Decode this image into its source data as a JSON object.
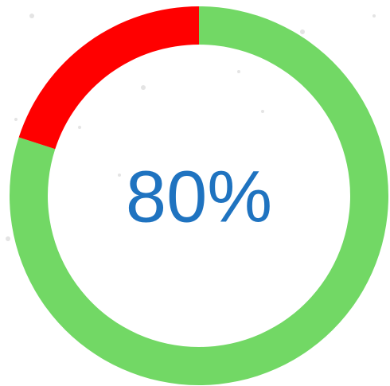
{
  "chart_data": {
    "type": "donut",
    "values": [
      80,
      20
    ],
    "colors": [
      "#72d865",
      "#ff0000"
    ],
    "center_label": "80%"
  }
}
